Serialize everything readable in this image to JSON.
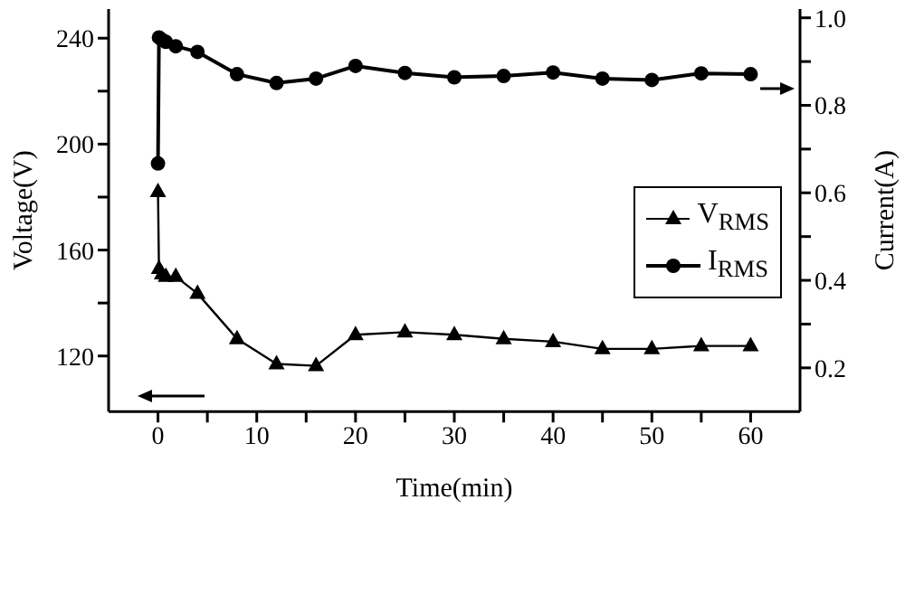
{
  "chart_data": {
    "type": "line",
    "xlabel": "Time(min)",
    "ylabel": "Voltage(V)",
    "y2label": "Current(A)",
    "x": [
      0,
      0.1,
      0.4,
      0.8,
      1.8,
      4,
      8,
      12,
      16,
      20,
      25,
      30,
      35,
      40,
      45,
      50,
      55,
      60
    ],
    "series": [
      {
        "name": "V$_{RMS}$",
        "color": "#000000",
        "marker": "triangle",
        "values": [
          182,
          153,
          151,
          150,
          150,
          143.6,
          126.5,
          117,
          116.3,
          128,
          129,
          128,
          126.5,
          125.4,
          122.7,
          122.7,
          123.8,
          123.8
        ]
      },
      {
        "name": "I$_{RMS}$",
        "color": "#000000",
        "marker": "circle",
        "axis": "y2",
        "values": [
          0.667,
          0.955,
          0.95,
          0.945,
          0.935,
          0.922,
          0.871,
          0.851,
          0.861,
          0.89,
          0.874,
          0.864,
          0.867,
          0.875,
          0.861,
          0.858,
          0.873,
          0.871
        ]
      }
    ],
    "xlim": [
      -5,
      65
    ],
    "xticks": [
      0,
      {
        "value": 5,
        "label": null
      },
      10,
      {
        "value": 15,
        "label": null
      },
      20,
      {
        "value": 25,
        "label": null
      },
      30,
      {
        "value": 35,
        "label": null
      },
      40,
      {
        "value": 45,
        "label": null
      },
      50,
      {
        "value": 55,
        "label": null
      },
      60
    ],
    "ylim": [
      99,
      251
    ],
    "yticks": [
      120,
      {
        "value": 140,
        "label": null
      },
      160,
      {
        "value": 180,
        "label": null
      },
      200,
      {
        "value": 220,
        "label": null
      },
      240
    ],
    "y2lim": [
      0.1,
      1.02
    ],
    "y2ticks": [
      0.2,
      {
        "value": 0.3,
        "label": null
      },
      0.4,
      {
        "value": 0.5,
        "label": null
      },
      0.6,
      {
        "value": 0.7,
        "label": null
      },
      0.8,
      {
        "value": 0.9,
        "label": null
      },
      {
        "value": 1,
        "label": "1.0"
      }
    ],
    "grid": false,
    "legend": "right",
    "line_style": "solid"
  }
}
